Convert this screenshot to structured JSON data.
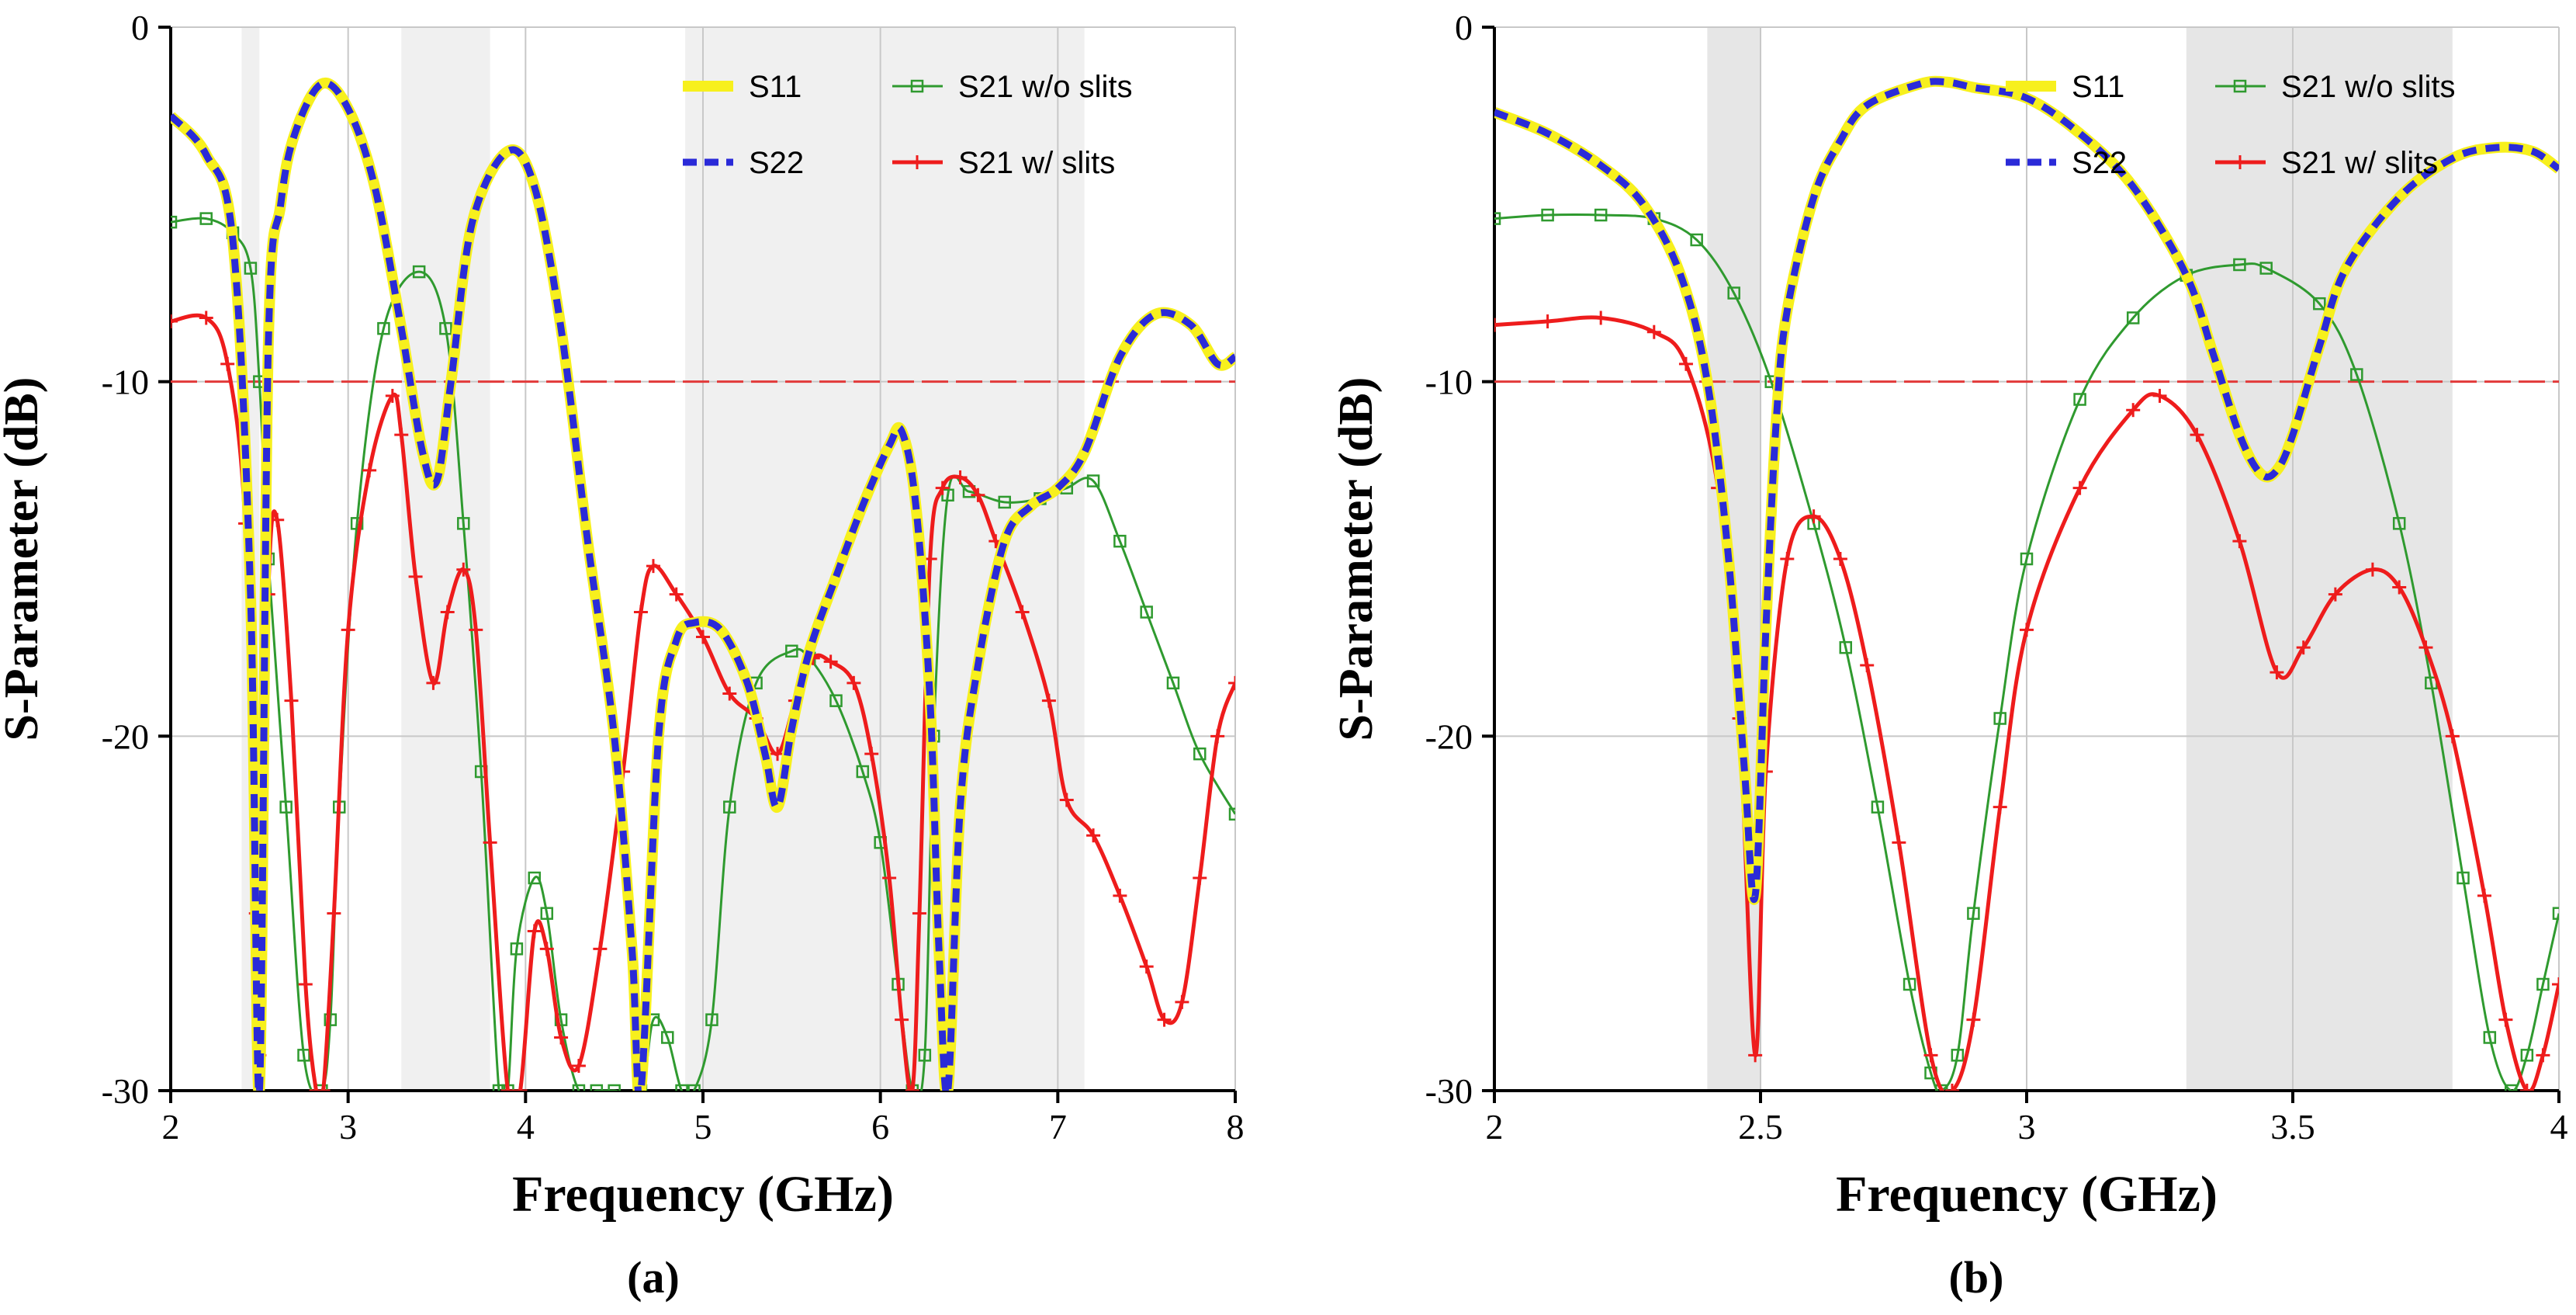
{
  "figure_labels": [
    "(a)",
    "(b)"
  ],
  "colors": {
    "s11": "#f7f01d",
    "s22": "#2a2ad8",
    "s21_wo": "#2f9a2f",
    "s21_w": "#ee1c1c",
    "ref_line": "#e23a3a",
    "band": "#e6e6e6",
    "grid": "#c8c8c8"
  },
  "chart_data": [
    {
      "type": "line",
      "panel": "(a)",
      "xlabel": "Frequency (GHz)",
      "ylabel": "S-Parameter (dB)",
      "xlim": [
        2,
        8
      ],
      "ylim": [
        -30,
        0
      ],
      "xticks": [
        2,
        3,
        4,
        5,
        6,
        7,
        8
      ],
      "yticks": [
        0,
        -10,
        -20,
        -30
      ],
      "xtick_labels": [
        "2",
        "3",
        "4",
        "5",
        "6",
        "7",
        "8"
      ],
      "ytick_labels": [
        "0",
        "-10",
        "-20",
        "-30"
      ],
      "grid": true,
      "legend_position": "top-right",
      "reference_line": -10,
      "shaded_bands": [
        [
          2.4,
          2.5
        ],
        [
          3.3,
          3.8
        ],
        [
          4.9,
          7.15
        ]
      ],
      "series": [
        {
          "name": "S11",
          "x": [
            2,
            2.2,
            2.35,
            2.45,
            2.5,
            2.55,
            2.62,
            2.7,
            2.85,
            3.0,
            3.15,
            3.3,
            3.42,
            3.5,
            3.58,
            3.7,
            3.9,
            4.05,
            4.2,
            4.35,
            4.5,
            4.6,
            4.65,
            4.75,
            4.85,
            4.95,
            5.1,
            5.25,
            5.35,
            5.42,
            5.5,
            5.6,
            5.75,
            5.9,
            6.05,
            6.12,
            6.2,
            6.28,
            6.33,
            6.38,
            6.45,
            6.55,
            6.7,
            6.85,
            7.0,
            7.15,
            7.35,
            7.55,
            7.75,
            7.9,
            8.0
          ],
          "values": [
            -2.5,
            -3.6,
            -6.0,
            -16,
            -30,
            -9,
            -5,
            -3.0,
            -1.6,
            -2.3,
            -4.5,
            -8.5,
            -12.0,
            -12.8,
            -10,
            -5.5,
            -3.5,
            -4.5,
            -8.5,
            -14.5,
            -20,
            -26,
            -30,
            -20,
            -17.3,
            -16.8,
            -17.0,
            -18.5,
            -20.5,
            -22,
            -19.8,
            -17.6,
            -15.5,
            -13.5,
            -11.8,
            -11.4,
            -13.5,
            -19,
            -26,
            -30,
            -22,
            -18,
            -14.5,
            -13.5,
            -13.0,
            -12.0,
            -9.3,
            -8.1,
            -8.4,
            -9.5,
            -9.3
          ],
          "dash": "solid"
        },
        {
          "name": "S22",
          "x": [
            2,
            2.2,
            2.35,
            2.45,
            2.5,
            2.55,
            2.62,
            2.7,
            2.85,
            3.0,
            3.15,
            3.3,
            3.42,
            3.5,
            3.58,
            3.7,
            3.9,
            4.05,
            4.2,
            4.35,
            4.5,
            4.6,
            4.65,
            4.75,
            4.85,
            4.95,
            5.1,
            5.25,
            5.35,
            5.42,
            5.5,
            5.6,
            5.75,
            5.9,
            6.05,
            6.12,
            6.2,
            6.28,
            6.33,
            6.38,
            6.45,
            6.55,
            6.7,
            6.85,
            7.0,
            7.15,
            7.35,
            7.55,
            7.75,
            7.9,
            8.0
          ],
          "values": [
            -2.5,
            -3.6,
            -6.0,
            -16,
            -30,
            -9,
            -5,
            -3.0,
            -1.6,
            -2.3,
            -4.5,
            -8.5,
            -12.0,
            -12.8,
            -10,
            -5.5,
            -3.5,
            -4.5,
            -8.5,
            -14.5,
            -20,
            -26,
            -30,
            -20,
            -17.3,
            -16.8,
            -17.0,
            -18.5,
            -20.5,
            -22,
            -19.8,
            -17.6,
            -15.5,
            -13.5,
            -11.8,
            -11.4,
            -13.5,
            -19,
            -26,
            -30,
            -22,
            -18,
            -14.5,
            -13.5,
            -13.0,
            -12.0,
            -9.3,
            -8.1,
            -8.4,
            -9.5,
            -9.3
          ],
          "dash": "dashed"
        },
        {
          "name": "S21 w/o slits",
          "x": [
            2,
            2.2,
            2.35,
            2.45,
            2.5,
            2.55,
            2.65,
            2.75,
            2.85,
            2.9,
            2.95,
            3.05,
            3.2,
            3.4,
            3.55,
            3.65,
            3.75,
            3.85,
            3.9,
            3.95,
            4.05,
            4.12,
            4.2,
            4.3,
            4.4,
            4.5,
            4.65,
            4.72,
            4.8,
            4.88,
            4.95,
            5.05,
            5.15,
            5.3,
            5.5,
            5.6,
            5.75,
            5.9,
            6.0,
            6.1,
            6.18,
            6.25,
            6.3,
            6.38,
            6.5,
            6.7,
            6.9,
            7.05,
            7.2,
            7.35,
            7.5,
            7.65,
            7.8,
            8.0
          ],
          "values": [
            -5.5,
            -5.4,
            -5.8,
            -6.8,
            -10,
            -15,
            -22,
            -29,
            -30,
            -28,
            -22,
            -14,
            -8.5,
            -6.9,
            -8.5,
            -14,
            -21,
            -30,
            -31,
            -26,
            -24,
            -25,
            -28,
            -30,
            -31,
            -31,
            -31,
            -28,
            -28.5,
            -30,
            -31,
            -28,
            -22,
            -18.5,
            -17.6,
            -17.8,
            -19,
            -21,
            -23,
            -27,
            -30,
            -29,
            -20,
            -13.2,
            -13.1,
            -13.4,
            -13.3,
            -13.0,
            -12.8,
            -14.5,
            -16.5,
            -18.5,
            -20.5,
            -22.2
          ],
          "dash": "solid",
          "marker": "square"
        },
        {
          "name": "S21 w/ slits",
          "x": [
            2,
            2.2,
            2.32,
            2.42,
            2.48,
            2.5,
            2.55,
            2.6,
            2.68,
            2.76,
            2.82,
            2.86,
            2.92,
            3.0,
            3.12,
            3.25,
            3.3,
            3.38,
            3.48,
            3.56,
            3.65,
            3.72,
            3.8,
            3.9,
            3.97,
            4.05,
            4.12,
            4.2,
            4.3,
            4.42,
            4.55,
            4.65,
            4.72,
            4.85,
            5.0,
            5.15,
            5.3,
            5.42,
            5.52,
            5.62,
            5.72,
            5.85,
            5.95,
            6.05,
            6.12,
            6.18,
            6.22,
            6.28,
            6.35,
            6.45,
            6.55,
            6.65,
            6.8,
            6.95,
            7.05,
            7.2,
            7.35,
            7.5,
            7.6,
            7.7,
            7.8,
            7.9,
            8.0
          ],
          "values": [
            -8.3,
            -8.2,
            -9.5,
            -14,
            -25,
            -29,
            -16,
            -13.9,
            -19,
            -27,
            -30,
            -31,
            -25,
            -17,
            -12.5,
            -10.4,
            -11.5,
            -15.5,
            -18.5,
            -16.5,
            -15.3,
            -17,
            -23,
            -30,
            -31,
            -25.5,
            -26,
            -28.5,
            -29.3,
            -26,
            -21,
            -16.5,
            -15.2,
            -16,
            -17.2,
            -18.8,
            -19.5,
            -20.5,
            -19,
            -17.8,
            -17.9,
            -18.5,
            -20.5,
            -24,
            -28,
            -30,
            -25,
            -15,
            -13.0,
            -12.7,
            -13.2,
            -14.5,
            -16.5,
            -19,
            -21.8,
            -22.8,
            -24.5,
            -26.5,
            -28,
            -27.5,
            -24,
            -20,
            -18.5
          ],
          "dash": "solid",
          "marker": "plus"
        }
      ]
    },
    {
      "type": "line",
      "panel": "(b)",
      "xlabel": "Frequency (GHz)",
      "ylabel": "S-Parameter (dB)",
      "xlim": [
        2,
        4
      ],
      "ylim": [
        -30,
        0
      ],
      "xticks": [
        2,
        2.5,
        3,
        3.5,
        4
      ],
      "yticks": [
        0,
        -10,
        -20,
        -30
      ],
      "xtick_labels": [
        "2",
        "2.5",
        "3",
        "3.5",
        "4"
      ],
      "ytick_labels": [
        "0",
        "-10",
        "-20",
        "-30"
      ],
      "grid": true,
      "legend_position": "top-right",
      "reference_line": -10,
      "shaded_bands": [
        [
          2.4,
          2.5
        ],
        [
          3.3,
          3.8
        ]
      ],
      "series": [
        {
          "name": "S11",
          "x": [
            2,
            2.1,
            2.2,
            2.28,
            2.35,
            2.4,
            2.44,
            2.47,
            2.49,
            2.51,
            2.53,
            2.55,
            2.6,
            2.65,
            2.7,
            2.8,
            2.85,
            2.9,
            3.0,
            3.1,
            3.2,
            3.3,
            3.35,
            3.4,
            3.44,
            3.47,
            3.5,
            3.55,
            3.6,
            3.7,
            3.8,
            3.88,
            3.95,
            4.0
          ],
          "values": [
            -2.4,
            -3.0,
            -3.9,
            -5.0,
            -7.0,
            -10,
            -15,
            -21,
            -24.5,
            -17,
            -11,
            -8,
            -4.8,
            -3.2,
            -2.2,
            -1.6,
            -1.55,
            -1.7,
            -2.0,
            -3.0,
            -4.5,
            -7.0,
            -9.2,
            -11.5,
            -12.6,
            -12.5,
            -11.5,
            -9,
            -6.8,
            -4.8,
            -3.7,
            -3.4,
            -3.5,
            -4.0
          ],
          "dash": "solid"
        },
        {
          "name": "S22",
          "x": [
            2,
            2.1,
            2.2,
            2.28,
            2.35,
            2.4,
            2.44,
            2.47,
            2.49,
            2.51,
            2.53,
            2.55,
            2.6,
            2.65,
            2.7,
            2.8,
            2.85,
            2.9,
            3.0,
            3.1,
            3.2,
            3.3,
            3.35,
            3.4,
            3.44,
            3.47,
            3.5,
            3.55,
            3.6,
            3.7,
            3.8,
            3.88,
            3.95,
            4.0
          ],
          "values": [
            -2.4,
            -3.0,
            -3.9,
            -5.0,
            -7.0,
            -10,
            -15,
            -21,
            -24.5,
            -17,
            -11,
            -8,
            -4.8,
            -3.2,
            -2.2,
            -1.6,
            -1.55,
            -1.7,
            -2.0,
            -3.0,
            -4.5,
            -7.0,
            -9.2,
            -11.5,
            -12.6,
            -12.5,
            -11.5,
            -9,
            -6.8,
            -4.8,
            -3.7,
            -3.4,
            -3.5,
            -4.0
          ],
          "dash": "dashed"
        },
        {
          "name": "S21 w/o slits",
          "x": [
            2,
            2.1,
            2.2,
            2.3,
            2.38,
            2.45,
            2.52,
            2.6,
            2.66,
            2.72,
            2.78,
            2.82,
            2.84,
            2.87,
            2.9,
            2.95,
            3.0,
            3.1,
            3.2,
            3.3,
            3.4,
            3.45,
            3.55,
            3.62,
            3.7,
            3.76,
            3.82,
            3.87,
            3.91,
            3.94,
            3.97,
            4.0
          ],
          "values": [
            -5.4,
            -5.3,
            -5.3,
            -5.4,
            -6.0,
            -7.5,
            -10,
            -14,
            -17.5,
            -22,
            -27,
            -29.5,
            -30,
            -29,
            -25,
            -19.5,
            -15,
            -10.5,
            -8.2,
            -7.0,
            -6.7,
            -6.8,
            -7.8,
            -9.8,
            -14,
            -18.5,
            -24,
            -28.5,
            -30.5,
            -29,
            -27,
            -25
          ],
          "dash": "solid",
          "marker": "square"
        },
        {
          "name": "S21 w/ slits",
          "x": [
            2,
            2.1,
            2.2,
            2.3,
            2.36,
            2.42,
            2.46,
            2.49,
            2.51,
            2.55,
            2.6,
            2.65,
            2.7,
            2.76,
            2.82,
            2.86,
            2.9,
            2.95,
            3.0,
            3.1,
            3.2,
            3.25,
            3.32,
            3.4,
            3.47,
            3.52,
            3.58,
            3.65,
            3.7,
            3.75,
            3.8,
            3.86,
            3.9,
            3.94,
            3.97,
            4.0
          ],
          "values": [
            -8.4,
            -8.3,
            -8.2,
            -8.6,
            -9.5,
            -13,
            -19.5,
            -29,
            -21,
            -15,
            -13.8,
            -15,
            -18,
            -23,
            -29,
            -30.5,
            -28,
            -22,
            -17,
            -13,
            -10.8,
            -10.4,
            -11.5,
            -14.5,
            -18.2,
            -17.5,
            -16,
            -15.3,
            -15.8,
            -17.5,
            -20,
            -24.5,
            -28,
            -30.5,
            -29,
            -27
          ],
          "dash": "solid",
          "marker": "plus"
        }
      ]
    }
  ]
}
